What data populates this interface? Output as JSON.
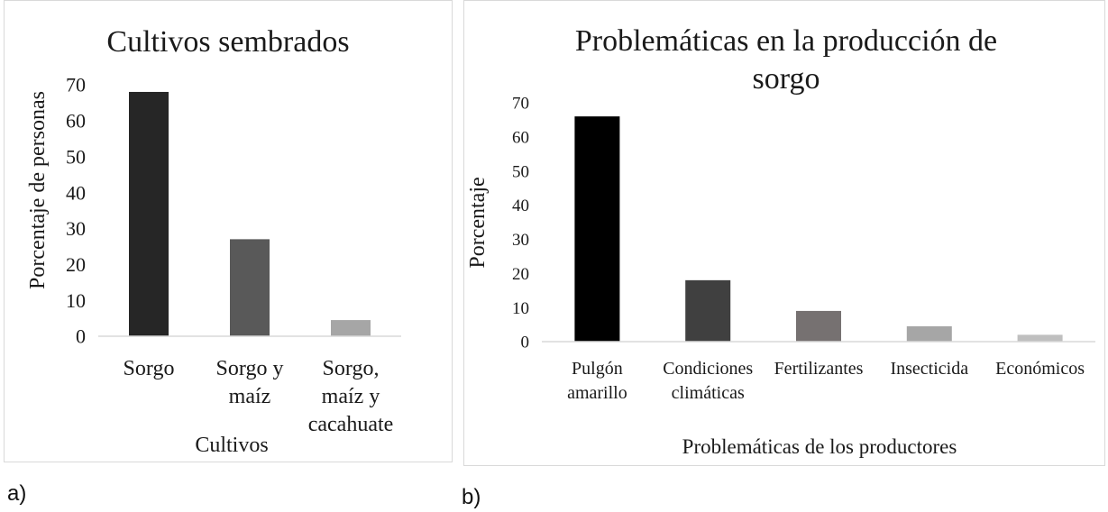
{
  "panel_labels": [
    "a)",
    "b)"
  ],
  "chart_data": [
    {
      "type": "bar",
      "title": [
        "Cultivos sembrados"
      ],
      "xlabel": "Cultivos",
      "ylabel": "Porcentaje de personas",
      "ylim": [
        0,
        70
      ],
      "yticks": [
        0,
        10,
        20,
        30,
        40,
        50,
        60,
        70
      ],
      "categories": [
        [
          "Sorgo"
        ],
        [
          "Sorgo y",
          "maíz"
        ],
        [
          "Sorgo,",
          "maíz y",
          "cacahuate"
        ]
      ],
      "values": [
        68,
        27,
        4.5
      ],
      "colors": [
        "#262626",
        "#595959",
        "#a6a6a6"
      ],
      "grid": false,
      "legend": "none"
    },
    {
      "type": "bar",
      "title": [
        "Problemáticas en la producción de",
        "sorgo"
      ],
      "xlabel": "Problemáticas de los productores",
      "ylabel": "Porcentaje",
      "ylim": [
        0,
        70
      ],
      "yticks": [
        0,
        10,
        20,
        30,
        40,
        50,
        60,
        70
      ],
      "categories": [
        [
          "Pulgón",
          "amarillo"
        ],
        [
          "Condiciones",
          "climáticas"
        ],
        [
          "Fertilizantes"
        ],
        [
          "Insecticida"
        ],
        [
          "Económicos"
        ]
      ],
      "values": [
        66,
        18,
        9,
        4.5,
        2
      ],
      "colors": [
        "#000000",
        "#404040",
        "#767171",
        "#a6a6a6",
        "#bfbfbf"
      ],
      "grid": false,
      "legend": "none"
    }
  ]
}
